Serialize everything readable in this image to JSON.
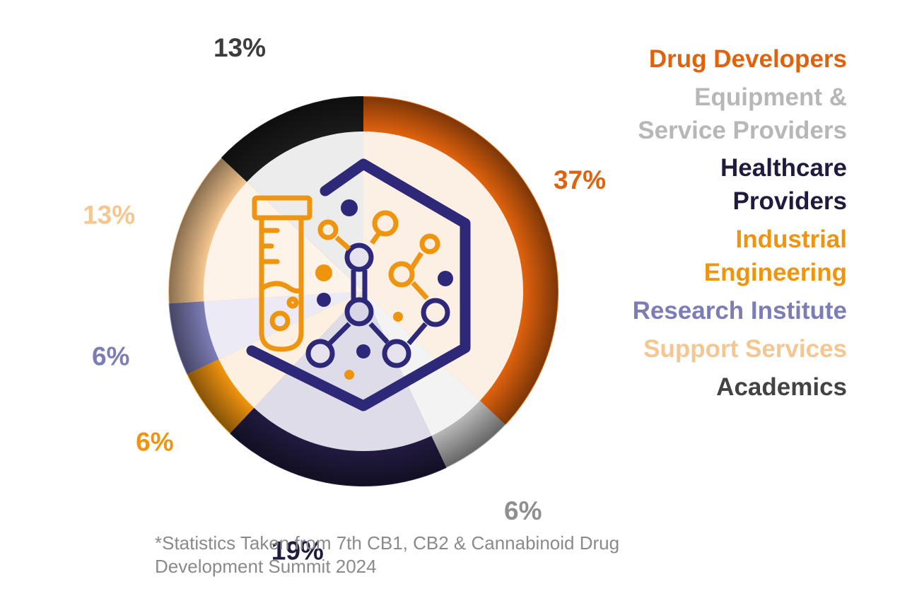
{
  "chart_data": {
    "type": "pie",
    "style": "donut",
    "categories": [
      "Drug Developers",
      "Equipment & Service Providers",
      "Healthcare Providers",
      "Industrial Engineering",
      "Research Institute",
      "Support Services",
      "Academics"
    ],
    "values": [
      37,
      6,
      19,
      6,
      6,
      13,
      13
    ],
    "labels": [
      "37%",
      "6%",
      "19%",
      "6%",
      "6%",
      "13%",
      "13%"
    ],
    "colors": [
      "#e0620d",
      "#b7b7b7",
      "#211a3f",
      "#ef940f",
      "#7c7db5",
      "#f5c68f",
      "#1a1a1a"
    ],
    "legend": [
      {
        "text": "Drug Developers",
        "color": "#e0620d"
      },
      {
        "text": "Equipment & Service Providers",
        "color": "#b7b7b7"
      },
      {
        "text": "Healthcare Providers",
        "color": "#211a3f"
      },
      {
        "text": "Industrial Engineering",
        "color": "#ef940f"
      },
      {
        "text": "Research Institute",
        "color": "#7c7db5"
      },
      {
        "text": "Support Services",
        "color": "#f5c68f"
      },
      {
        "text": "Academics",
        "color": "#434343"
      }
    ],
    "legend_position": "right",
    "title": ""
  },
  "label_colors": [
    "#e0620d",
    "#8f8f8f",
    "#211a3f",
    "#ef940f",
    "#7c7db5",
    "#f5c68f",
    "#3c3c3c"
  ],
  "icon": {
    "name": "laboratory-molecule-icon",
    "primary": "#2e2878",
    "secondary": "#ef940f"
  },
  "footnote": "*Statistics Taken from 7th CB1, CB2 & Cannabinoid Drug Development Summit 2024"
}
